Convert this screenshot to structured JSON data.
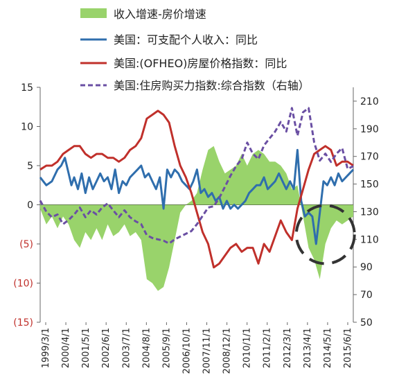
{
  "chart_data": {
    "type": "line",
    "title": "",
    "legend": {
      "placement": "top",
      "entries": [
        {
          "key": "income_minus_house",
          "label": "收入增速-房价增速",
          "marker": "area",
          "color": "#99d36b"
        },
        {
          "key": "us_income",
          "label": "美国：可支配个人收入：同比",
          "marker": "line",
          "color": "#2f6ead"
        },
        {
          "key": "us_hpi",
          "label": "美国:(OFHEO)房屋价格指数：同比",
          "marker": "line",
          "color": "#c0302b"
        },
        {
          "key": "affordability",
          "label": "美国:住房购买力指数:综合指数（右轴）",
          "marker": "dash",
          "color": "#6a4fa3"
        }
      ]
    },
    "left_axis": {
      "ylim": [
        -15,
        15
      ],
      "ticks": [
        15,
        10,
        5,
        0,
        -5,
        -10,
        -15
      ],
      "tick_labels": [
        "15",
        "10",
        "5",
        "0",
        "(5)",
        "(10)",
        "(15)"
      ],
      "negative_color": "#c0302b"
    },
    "right_axis": {
      "ylim": [
        50,
        220
      ],
      "ticks": [
        210,
        190,
        170,
        150,
        130,
        110,
        90,
        70,
        50
      ],
      "tick_labels": [
        "210",
        "190",
        "170",
        "150",
        "130",
        "110",
        "90",
        "70",
        "50"
      ]
    },
    "x_axis": {
      "categories": [
        "1999/3/1",
        "2000/4/1",
        "2001/5/1",
        "2002/6/1",
        "2003/7/1",
        "2004/8/1",
        "2005/9/1",
        "2006/10/1",
        "2007/11/1",
        "2008/12/1",
        "2010/1/1",
        "2011/2/1",
        "2012/3/1",
        "2013/4/1",
        "2014/5/1",
        "2015/6/1"
      ],
      "range": [
        1999.17,
        2016.0
      ]
    },
    "series": [
      {
        "key": "us_income",
        "name": "美国：可支配个人收入：同比",
        "axis": "left",
        "color": "#2f6ead",
        "x": [
          1999.17,
          1999.5,
          1999.8,
          2000.1,
          2000.3,
          2000.5,
          2000.7,
          2000.85,
          2001.0,
          2001.2,
          2001.4,
          2001.6,
          2001.8,
          2002.0,
          2002.2,
          2002.4,
          2002.6,
          2002.8,
          2003.0,
          2003.2,
          2003.4,
          2003.6,
          2003.8,
          2004.0,
          2004.2,
          2004.4,
          2004.6,
          2004.8,
          2005.0,
          2005.2,
          2005.4,
          2005.6,
          2005.8,
          2006.0,
          2006.2,
          2006.4,
          2006.6,
          2006.8,
          2007.0,
          2007.2,
          2007.4,
          2007.6,
          2007.8,
          2008.0,
          2008.2,
          2008.4,
          2008.6,
          2008.8,
          2009.0,
          2009.2,
          2009.4,
          2009.6,
          2009.8,
          2010.0,
          2010.2,
          2010.4,
          2010.6,
          2010.8,
          2011.0,
          2011.2,
          2011.4,
          2011.6,
          2011.8,
          2012.0,
          2012.2,
          2012.4,
          2012.6,
          2012.8,
          2013.0,
          2013.2,
          2013.4,
          2013.6,
          2013.8,
          2014.0,
          2014.2,
          2014.4,
          2014.6,
          2014.8,
          2015.0,
          2015.2,
          2015.4,
          2015.6,
          2015.8,
          2016.0
        ],
        "values": [
          3.5,
          2.5,
          3.0,
          4.5,
          5.0,
          6.0,
          4.0,
          2.5,
          3.5,
          2.0,
          4.0,
          1.5,
          3.5,
          2.0,
          3.0,
          4.0,
          3.0,
          3.5,
          2.0,
          4.5,
          1.5,
          3.0,
          2.5,
          3.5,
          4.0,
          4.5,
          5.0,
          3.5,
          4.0,
          3.0,
          2.0,
          3.5,
          -0.5,
          4.5,
          3.5,
          4.5,
          4.0,
          3.0,
          2.5,
          2.0,
          3.0,
          4.5,
          1.5,
          2.0,
          1.0,
          1.5,
          0.5,
          1.0,
          -0.5,
          0.5,
          -0.5,
          0.0,
          -0.5,
          0.0,
          0.5,
          1.5,
          2.0,
          2.5,
          2.5,
          3.5,
          2.0,
          2.5,
          3.0,
          4.0,
          3.0,
          2.0,
          3.0,
          2.0,
          7.0,
          0.5,
          -1.5,
          -1.0,
          -1.5,
          -5.0,
          -1.0,
          3.0,
          2.5,
          3.5,
          2.5,
          4.0,
          3.0,
          3.5,
          4.0,
          4.5
        ]
      },
      {
        "key": "us_hpi",
        "name": "美国:(OFHEO)房屋价格指数：同比",
        "axis": "left",
        "color": "#c0302b",
        "x": [
          1999.17,
          1999.5,
          1999.8,
          2000.1,
          2000.4,
          2000.7,
          2001.0,
          2001.3,
          2001.6,
          2001.9,
          2002.2,
          2002.5,
          2002.8,
          2003.1,
          2003.4,
          2003.7,
          2004.0,
          2004.3,
          2004.6,
          2004.9,
          2005.2,
          2005.5,
          2005.8,
          2006.1,
          2006.4,
          2006.7,
          2007.0,
          2007.3,
          2007.6,
          2007.9,
          2008.2,
          2008.5,
          2008.8,
          2009.1,
          2009.4,
          2009.7,
          2010.0,
          2010.3,
          2010.6,
          2010.9,
          2011.2,
          2011.5,
          2011.8,
          2012.1,
          2012.4,
          2012.7,
          2013.0,
          2013.3,
          2013.6,
          2013.9,
          2014.2,
          2014.5,
          2014.8,
          2015.1,
          2015.4,
          2015.7,
          2016.0
        ],
        "values": [
          4.5,
          5.0,
          5.0,
          5.5,
          6.5,
          7.0,
          7.5,
          7.5,
          6.5,
          6.0,
          6.5,
          6.5,
          6.0,
          6.0,
          5.5,
          6.0,
          7.0,
          7.5,
          8.5,
          11.0,
          11.5,
          12.0,
          11.5,
          10.5,
          7.5,
          5.0,
          3.5,
          1.5,
          -1.0,
          -3.5,
          -5.0,
          -8.0,
          -7.5,
          -6.5,
          -5.5,
          -5.0,
          -6.0,
          -5.5,
          -5.5,
          -7.5,
          -5.0,
          -6.0,
          -4.0,
          -2.0,
          -3.5,
          -4.5,
          -0.5,
          2.0,
          4.5,
          6.5,
          7.0,
          7.5,
          7.0,
          5.0,
          5.5,
          5.5,
          5.0
        ]
      },
      {
        "key": "affordability",
        "name": "美国:住房购买力指数:综合指数（右轴）",
        "axis": "right",
        "color": "#6a4fa3",
        "x": [
          1999.17,
          1999.5,
          1999.8,
          2000.1,
          2000.4,
          2000.7,
          2001.0,
          2001.3,
          2001.6,
          2001.9,
          2002.2,
          2002.5,
          2002.8,
          2003.1,
          2003.4,
          2003.7,
          2004.0,
          2004.3,
          2004.6,
          2004.9,
          2005.2,
          2005.5,
          2005.8,
          2006.1,
          2006.4,
          2006.7,
          2007.0,
          2007.3,
          2007.6,
          2007.9,
          2008.2,
          2008.5,
          2008.8,
          2009.1,
          2009.4,
          2009.7,
          2010.0,
          2010.3,
          2010.6,
          2010.9,
          2011.2,
          2011.5,
          2011.8,
          2012.1,
          2012.4,
          2012.7,
          2013.0,
          2013.3,
          2013.6,
          2013.9,
          2014.2,
          2014.5,
          2014.8,
          2015.1,
          2015.4,
          2015.7,
          2016.0
        ],
        "values": [
          138,
          130,
          126,
          128,
          121,
          124,
          128,
          133,
          126,
          131,
          128,
          133,
          136,
          131,
          126,
          131,
          126,
          123,
          121,
          113,
          111,
          110,
          109,
          107,
          110,
          112,
          114,
          116,
          121,
          127,
          133,
          134,
          140,
          148,
          156,
          163,
          168,
          180,
          172,
          168,
          178,
          183,
          188,
          195,
          188,
          205,
          185,
          202,
          205,
          180,
          167,
          172,
          166,
          172,
          176,
          161,
          163
        ]
      },
      {
        "key": "income_minus_house",
        "name": "收入增速-房价增速",
        "axis": "left",
        "type": "area",
        "color": "#99d36b",
        "x": [
          1999.17,
          1999.5,
          1999.8,
          2000.1,
          2000.4,
          2000.7,
          2001.0,
          2001.3,
          2001.6,
          2001.9,
          2002.2,
          2002.5,
          2002.8,
          2003.1,
          2003.4,
          2003.7,
          2004.0,
          2004.3,
          2004.6,
          2004.9,
          2005.2,
          2005.5,
          2005.8,
          2006.1,
          2006.4,
          2006.7,
          2007.0,
          2007.3,
          2007.6,
          2007.9,
          2008.2,
          2008.5,
          2008.8,
          2009.1,
          2009.4,
          2009.7,
          2010.0,
          2010.3,
          2010.6,
          2010.9,
          2011.2,
          2011.5,
          2011.8,
          2012.1,
          2012.4,
          2012.7,
          2013.0,
          2013.3,
          2013.6,
          2013.9,
          2014.2,
          2014.5,
          2014.8,
          2015.1,
          2015.4,
          2015.7,
          2016.0
        ],
        "values": [
          -0.5,
          -2.5,
          -1.5,
          -3.0,
          -1.5,
          -2.5,
          -4.5,
          -5.5,
          -3.5,
          -4.5,
          -3.0,
          -4.5,
          -2.5,
          -4.0,
          -3.5,
          -2.5,
          -4.0,
          -3.5,
          -4.5,
          -9.5,
          -10.0,
          -11.0,
          -10.5,
          -8.0,
          -4.5,
          -1.0,
          0.0,
          0.5,
          1.5,
          4.5,
          7.0,
          7.5,
          5.5,
          4.0,
          4.5,
          5.0,
          6.5,
          5.0,
          6.5,
          7.0,
          6.5,
          5.5,
          5.5,
          5.0,
          4.0,
          2.0,
          2.5,
          -1.5,
          -5.5,
          -7.0,
          -9.5,
          -5.0,
          -3.0,
          -2.0,
          -2.5,
          -2.0,
          -1.5
        ]
      }
    ],
    "annotation": {
      "type": "dashed-circle",
      "around": "2013–2015 left-axis negative region",
      "color": "#333333"
    }
  }
}
